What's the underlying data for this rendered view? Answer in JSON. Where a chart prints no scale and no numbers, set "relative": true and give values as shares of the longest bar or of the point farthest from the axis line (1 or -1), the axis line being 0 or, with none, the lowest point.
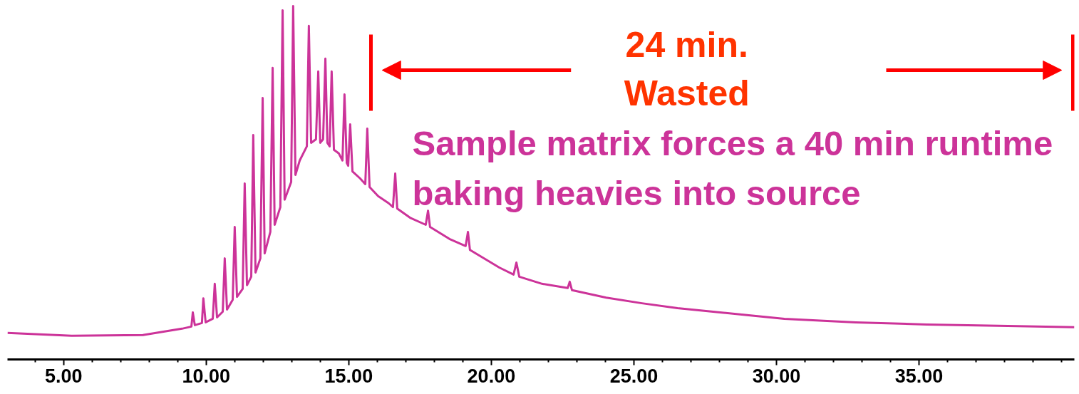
{
  "chart_data": {
    "type": "line",
    "relative": true,
    "xlim": [
      3.03,
      40.45
    ],
    "xticks": [
      {
        "value": 4,
        "label": null
      },
      {
        "value": 5,
        "label": "5.00"
      },
      {
        "value": 6,
        "label": null
      },
      {
        "value": 7,
        "label": null
      },
      {
        "value": 8,
        "label": null
      },
      {
        "value": 9,
        "label": null
      },
      {
        "value": 10,
        "label": "10.00"
      },
      {
        "value": 11,
        "label": null
      },
      {
        "value": 12,
        "label": null
      },
      {
        "value": 13,
        "label": null
      },
      {
        "value": 14,
        "label": null
      },
      {
        "value": 15,
        "label": "15.00"
      },
      {
        "value": 16,
        "label": null
      },
      {
        "value": 17,
        "label": null
      },
      {
        "value": 18,
        "label": null
      },
      {
        "value": 19,
        "label": null
      },
      {
        "value": 20,
        "label": "20.00"
      },
      {
        "value": 21,
        "label": null
      },
      {
        "value": 22,
        "label": null
      },
      {
        "value": 23,
        "label": null
      },
      {
        "value": 24,
        "label": null
      },
      {
        "value": 25,
        "label": "25.00"
      },
      {
        "value": 26,
        "label": null
      },
      {
        "value": 27,
        "label": null
      },
      {
        "value": 28,
        "label": null
      },
      {
        "value": 29,
        "label": null
      },
      {
        "value": 30,
        "label": "30.00"
      },
      {
        "value": 31,
        "label": null
      },
      {
        "value": 32,
        "label": null
      },
      {
        "value": 33,
        "label": null
      },
      {
        "value": 34,
        "label": null
      },
      {
        "value": 35,
        "label": "35.00"
      },
      {
        "value": 36,
        "label": null
      },
      {
        "value": 37,
        "label": null
      },
      {
        "value": 38,
        "label": null
      },
      {
        "value": 39,
        "label": null
      },
      {
        "value": 40,
        "label": null
      }
    ],
    "series": [
      {
        "color": "#cc3399",
        "x": [
          3.03,
          5.28,
          7.78,
          9.15,
          9.48,
          9.53,
          9.6,
          9.85,
          9.9,
          9.98,
          10.23,
          10.3,
          10.38,
          10.58,
          10.65,
          10.73,
          10.93,
          11.0,
          11.08,
          11.28,
          11.35,
          11.43,
          11.58,
          11.65,
          11.73,
          11.9,
          11.98,
          12.05,
          12.25,
          12.33,
          12.4,
          12.6,
          12.68,
          12.75,
          12.98,
          13.05,
          13.13,
          13.28,
          13.53,
          13.6,
          13.68,
          13.85,
          13.93,
          14.0,
          14.1,
          14.18,
          14.25,
          14.33,
          14.4,
          14.48,
          14.65,
          14.78,
          14.85,
          14.93,
          14.98,
          15.05,
          15.13,
          15.4,
          15.58,
          15.65,
          15.73,
          16.03,
          16.4,
          16.55,
          16.63,
          16.7,
          17.15,
          17.7,
          17.78,
          17.85,
          18.53,
          19.1,
          19.18,
          19.25,
          20.28,
          20.78,
          20.88,
          20.98,
          21.78,
          22.68,
          22.75,
          22.83,
          24.03,
          25.28,
          26.53,
          27.78,
          29.03,
          30.28,
          32.78,
          35.28,
          37.78,
          40.45
        ],
        "values": [
          0.075,
          0.067,
          0.069,
          0.087,
          0.093,
          0.133,
          0.097,
          0.103,
          0.173,
          0.105,
          0.115,
          0.214,
          0.119,
          0.135,
          0.286,
          0.141,
          0.169,
          0.375,
          0.177,
          0.2,
          0.498,
          0.21,
          0.234,
          0.635,
          0.246,
          0.286,
          0.74,
          0.3,
          0.361,
          0.825,
          0.381,
          0.431,
          0.988,
          0.452,
          0.502,
          1.0,
          0.522,
          0.563,
          0.603,
          0.944,
          0.613,
          0.623,
          0.815,
          0.613,
          0.623,
          0.851,
          0.613,
          0.603,
          0.815,
          0.593,
          0.583,
          0.563,
          0.75,
          0.556,
          0.548,
          0.665,
          0.532,
          0.512,
          0.496,
          0.653,
          0.488,
          0.462,
          0.442,
          0.431,
          0.526,
          0.427,
          0.401,
          0.381,
          0.421,
          0.375,
          0.341,
          0.321,
          0.361,
          0.31,
          0.26,
          0.24,
          0.274,
          0.234,
          0.214,
          0.202,
          0.22,
          0.196,
          0.175,
          0.159,
          0.145,
          0.135,
          0.125,
          0.115,
          0.105,
          0.099,
          0.095,
          0.091
        ]
      }
    ],
    "annotations": [
      "24 min.\nWasted",
      "Sample matrix forces a 40 min runtime\nbaking heavies into source"
    ]
  }
}
